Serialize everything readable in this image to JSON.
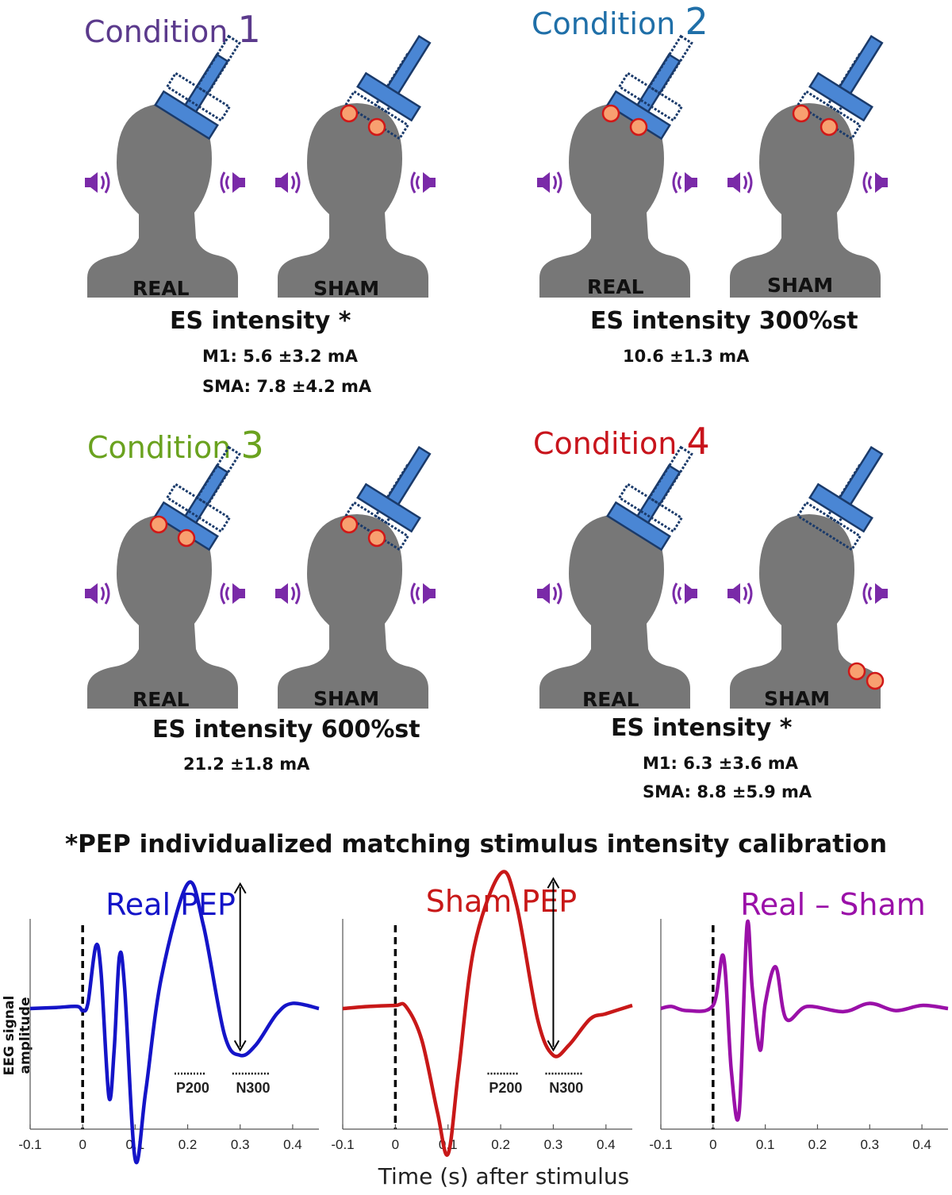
{
  "conditions": [
    {
      "word": "Condition",
      "num": "1",
      "color": "#5b3a8c",
      "labels": [
        "REAL",
        "SHAM"
      ],
      "es": "ES intensity *",
      "values": [
        "M1: 5.6 ±3.2 mA",
        "SMA: 7.8 ±4.2 mA"
      ]
    },
    {
      "word": "Condition",
      "num": "2",
      "color": "#1f6fa8",
      "labels": [
        "REAL",
        "SHAM"
      ],
      "es": "ES intensity 300%st",
      "values": [
        "10.6 ±1.3 mA"
      ]
    },
    {
      "word": "Condition",
      "num": "3",
      "color": "#6aa21f",
      "labels": [
        "REAL",
        "SHAM"
      ],
      "es": "ES intensity 600%st",
      "values": [
        "21.2 ±1.8 mA"
      ]
    },
    {
      "word": "Condition",
      "num": "4",
      "color": "#c8141c",
      "labels": [
        "REAL",
        "SHAM"
      ],
      "es": "ES intensity *",
      "values": [
        "M1: 6.3 ±3.6 mA",
        "SMA: 8.8 ±5.9 mA"
      ]
    }
  ],
  "footnote": "*PEP individualized matching stimulus intensity calibration",
  "chart_data": [
    {
      "type": "line",
      "title": "Real PEP",
      "color": "#1414c8",
      "xlim": [
        -0.1,
        0.45
      ],
      "xticks": [
        "-0.1",
        "0",
        "0.1",
        "0.2",
        "0.3",
        "0.4"
      ],
      "components": [
        "P200",
        "N300"
      ]
    },
    {
      "type": "line",
      "title": "Sham PEP",
      "color": "#c81818",
      "xlim": [
        -0.1,
        0.45
      ],
      "xticks": [
        "-0.1",
        "0",
        "0.1",
        "0.2",
        "0.3",
        "0.4"
      ],
      "components": [
        "P200",
        "N300"
      ]
    },
    {
      "type": "line",
      "title": "Real – Sham",
      "color": "#9a10a8",
      "xlim": [
        -0.1,
        0.45
      ],
      "xticks": [
        "-0.1",
        "0",
        "0.1",
        "0.2",
        "0.3",
        "0.4"
      ]
    }
  ],
  "ylabel": "EEG signal amplitude",
  "xlabel": "Time (s) after stimulus",
  "colors": {
    "head": "#777777",
    "coil_fill": "#4a86d4",
    "coil_stroke": "#1a3a6a",
    "electrode_fill": "#f8a070",
    "electrode_stroke": "#d01818",
    "speaker": "#7a2aa8"
  }
}
